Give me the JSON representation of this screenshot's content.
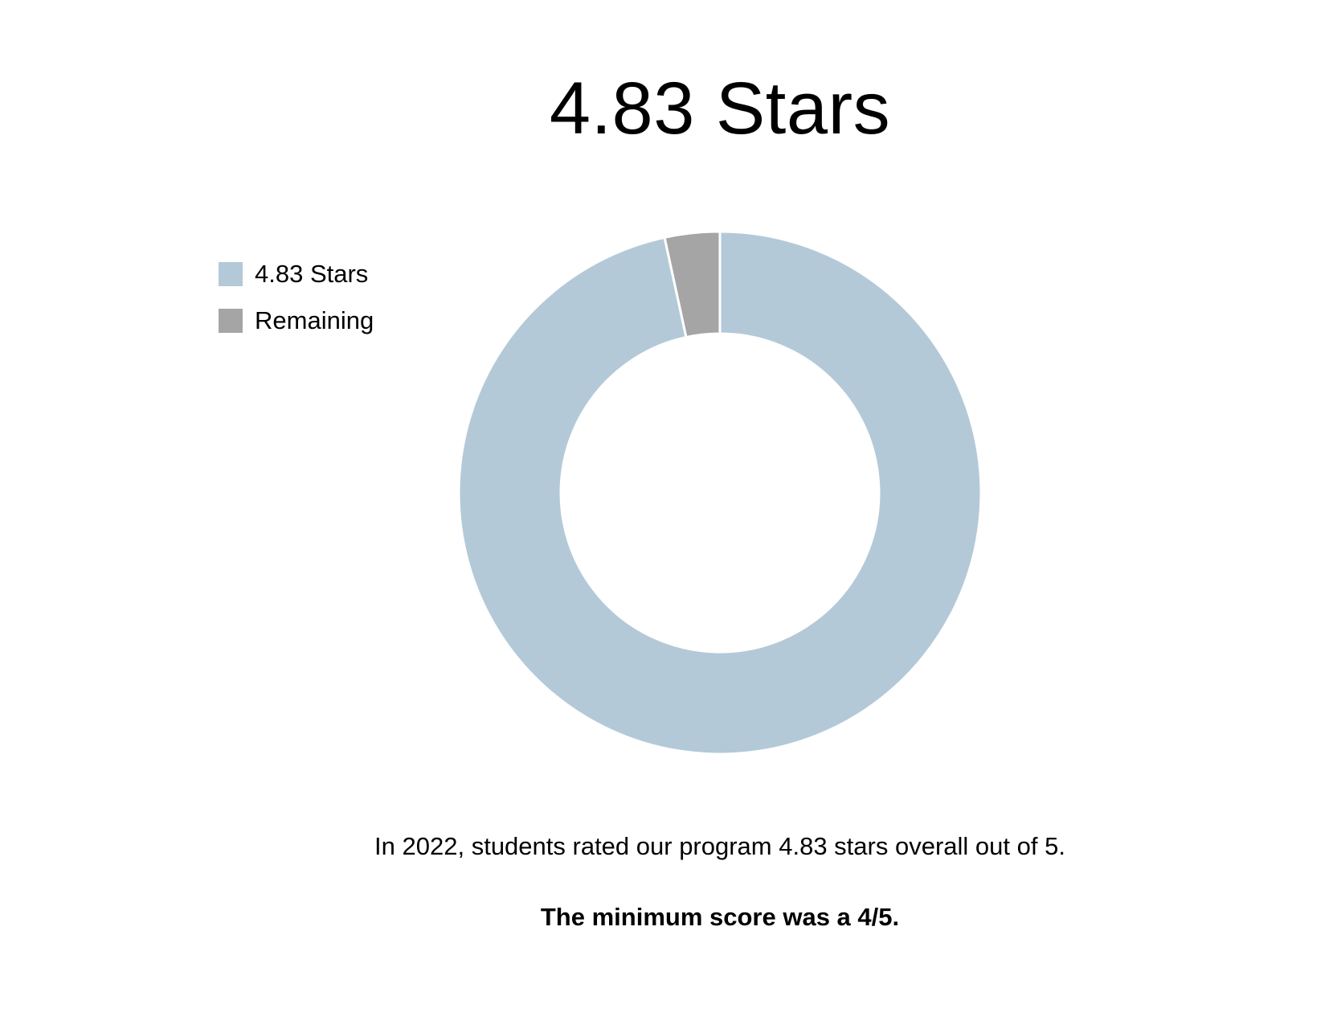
{
  "title": "4.83 Stars",
  "legend": {
    "items": [
      {
        "label": "4.83 Stars",
        "color": "#b4c9d8"
      },
      {
        "label": "Remaining",
        "color": "#a5a5a5"
      }
    ]
  },
  "captions": {
    "main": "In 2022, students rated our program 4.83 stars overall out of 5.",
    "note": "The minimum score was a 4/5."
  },
  "chart_data": {
    "type": "pie",
    "variant": "donut",
    "title": "4.83 Stars",
    "categories": [
      "4.83 Stars",
      "Remaining"
    ],
    "values": [
      4.83,
      0.17
    ],
    "total": 5,
    "colors": [
      "#b4c9d8",
      "#a5a5a5"
    ],
    "legend_position": "top-left"
  }
}
